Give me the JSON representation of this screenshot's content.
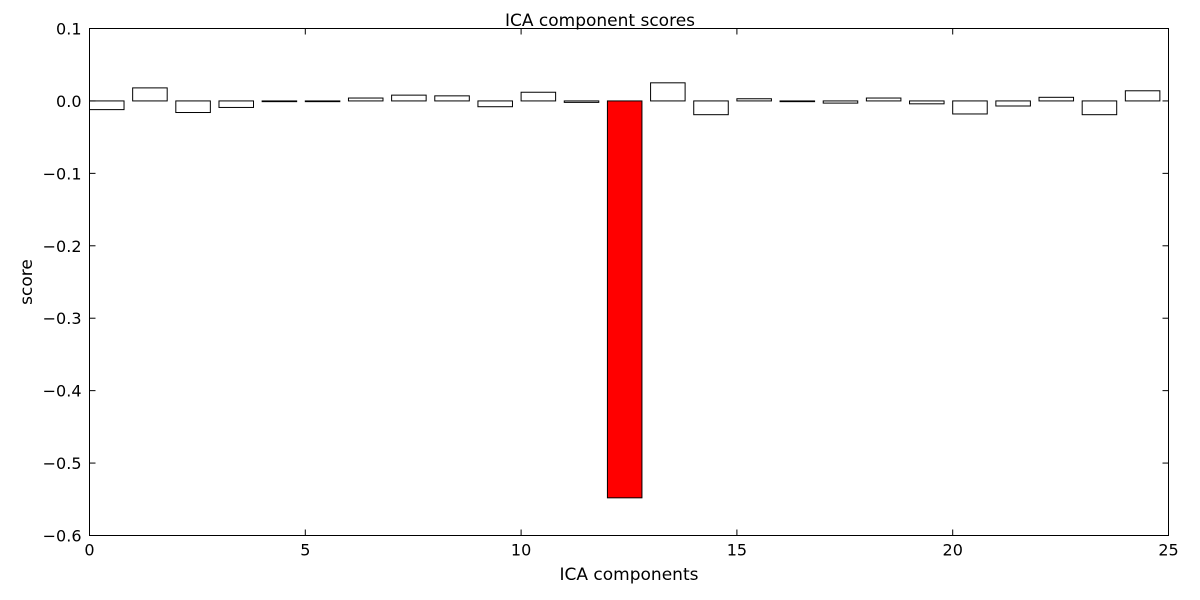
{
  "chart_data": {
    "type": "bar",
    "title": "ICA component scores",
    "xlabel": "ICA components",
    "ylabel": "score",
    "xlim": [
      0,
      25
    ],
    "ylim": [
      -0.6,
      0.1
    ],
    "grid": false,
    "bar_width": 0.8,
    "x": [
      0,
      1,
      2,
      3,
      4,
      5,
      6,
      7,
      8,
      9,
      10,
      11,
      12,
      13,
      14,
      15,
      16,
      17,
      18,
      19,
      20,
      21,
      22,
      23,
      24
    ],
    "values": [
      -0.012,
      0.018,
      -0.016,
      -0.009,
      -0.001,
      -0.001,
      0.004,
      0.008,
      0.007,
      -0.008,
      0.012,
      -0.002,
      -0.548,
      0.025,
      -0.019,
      0.003,
      -0.001,
      -0.003,
      0.004,
      -0.004,
      -0.018,
      -0.007,
      0.005,
      -0.019,
      0.014
    ],
    "highlight_index": 12,
    "colors": {
      "default_fill": "#ffffff",
      "highlight_fill": "#ff0000",
      "edge": "#000000"
    },
    "xticks": [
      0,
      5,
      10,
      15,
      20,
      25
    ],
    "xtick_labels": [
      "0",
      "5",
      "10",
      "15",
      "20",
      "25"
    ],
    "yticks": [
      0.1,
      0.0,
      -0.1,
      -0.2,
      -0.3,
      -0.4,
      -0.5,
      -0.6
    ],
    "ytick_labels": [
      "0.1",
      "0.0",
      "−0.1",
      "−0.2",
      "−0.3",
      "−0.4",
      "−0.5",
      "−0.6"
    ]
  }
}
